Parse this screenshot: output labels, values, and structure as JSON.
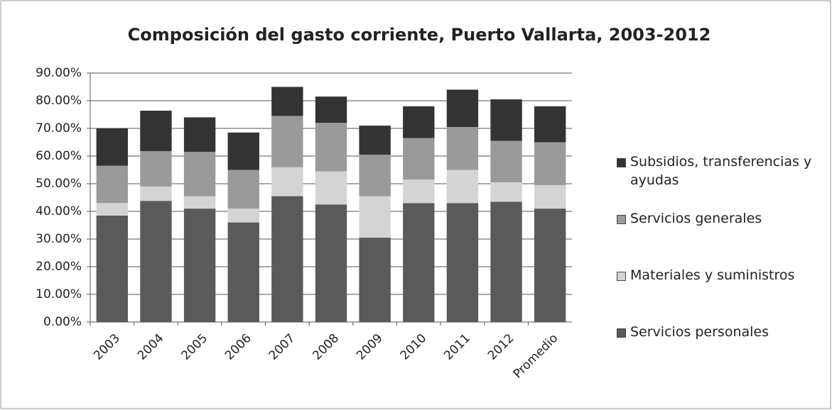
{
  "chart_data": {
    "type": "stacked_bar",
    "title": "Composición del gasto corriente, Puerto Vallarta, 2003-2012",
    "categories": [
      "2003",
      "2004",
      "2005",
      "2006",
      "2007",
      "2008",
      "2009",
      "2010",
      "2011",
      "2012",
      "Promedio"
    ],
    "series": [
      {
        "name": "Servicios personales",
        "color": "#5a5a5a",
        "values": [
          38.5,
          43.8,
          41,
          36,
          45.5,
          42.5,
          30.5,
          43,
          43,
          43.5,
          41
        ]
      },
      {
        "name": "Materiales y suministros",
        "color": "#d4d4d4",
        "values": [
          4.5,
          5.2,
          4.5,
          5,
          10.5,
          12,
          15,
          8.5,
          12,
          7,
          8.5
        ]
      },
      {
        "name": "Servicios generales",
        "color": "#9a9a9a",
        "values": [
          13.5,
          12.8,
          16,
          14,
          18.5,
          17.5,
          15,
          15,
          15.5,
          15,
          15.5
        ]
      },
      {
        "name": "Subsidios, transferencias y ayudas",
        "color": "#333333",
        "values": [
          13.5,
          14.6,
          12.5,
          13.5,
          10.5,
          9.5,
          10.5,
          11.5,
          13.5,
          15,
          13
        ]
      }
    ],
    "ylim": [
      0,
      90
    ],
    "yticks": [
      {
        "value": 0,
        "label": "0.00%"
      },
      {
        "value": 10,
        "label": "10.00%"
      },
      {
        "value": 20,
        "label": "20.00%"
      },
      {
        "value": 30,
        "label": "30.00%"
      },
      {
        "value": 40,
        "label": "40.00%"
      },
      {
        "value": 50,
        "label": "50.00%"
      },
      {
        "value": 60,
        "label": "60.00%"
      },
      {
        "value": 70,
        "label": "70.00%"
      },
      {
        "value": 80,
        "label": "80.00%"
      },
      {
        "value": 90,
        "label": "90.00%"
      }
    ],
    "grid": true
  }
}
